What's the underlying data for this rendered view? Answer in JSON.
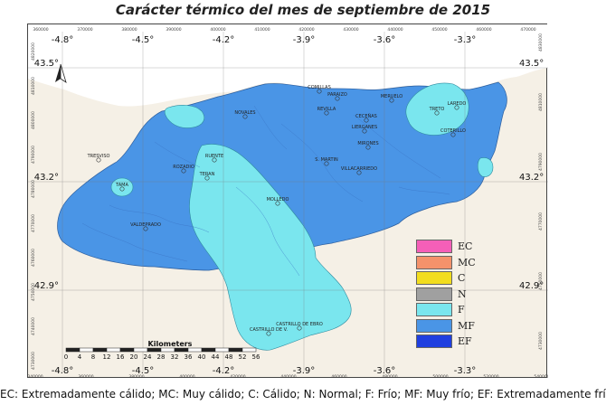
{
  "title": "Carácter térmico del mes de septiembre de 2015",
  "lon_labels_deg": [
    "-4.8°",
    "-4.5°",
    "-4.2°",
    "-3.9°",
    "-3.6°",
    "-3.3°"
  ],
  "lat_labels_deg": [
    "43.5°",
    "43.2°",
    "42.9°"
  ],
  "utm_x_top": [
    "360000",
    "370000",
    "380000",
    "390000",
    "400000",
    "410000",
    "420000",
    "430000",
    "440000",
    "450000",
    "460000",
    "470000"
  ],
  "utm_x_bottom": [
    "340000",
    "360000",
    "380000",
    "400000",
    "420000",
    "440000",
    "460000",
    "480000",
    "500000",
    "520000",
    "540000"
  ],
  "utm_y_left": [
    "4820000",
    "4810000",
    "4800000",
    "4790000",
    "4780000",
    "4770000",
    "4760000",
    "4750000",
    "4740000",
    "4730000"
  ],
  "utm_y_right": [
    "4830000",
    "4810000",
    "4790000",
    "4770000",
    "4750000",
    "4730000"
  ],
  "places": [
    "COMILLAS",
    "PARAIZO",
    "MERUELO",
    "LAREDO",
    "TRETO",
    "NOVALES",
    "REVILLA",
    "CECEÑAS",
    "LIERGANES",
    "COTERILLO",
    "MIRONES",
    "S. MARTIN",
    "VILLACARRIEDO",
    "TRESVISO",
    "TAMA",
    "ROZADIO",
    "TERAN",
    "RUENTE",
    "MOLLEDO",
    "VALDEPRADO",
    "CASTRILLO DE EBRO",
    "CASTRILLO DE V."
  ],
  "scale_bar": {
    "title": "Kilometers",
    "ticks": [
      "0",
      "4",
      "8",
      "12",
      "16",
      "20",
      "24",
      "28",
      "32",
      "36",
      "40",
      "44",
      "48",
      "52",
      "56"
    ]
  },
  "legend": [
    {
      "code": "EC",
      "color": "#f55fb8"
    },
    {
      "code": "MC",
      "color": "#f4926b"
    },
    {
      "code": "C",
      "color": "#f2dd1e"
    },
    {
      "code": "N",
      "color": "#a0a0a0"
    },
    {
      "code": "F",
      "color": "#7ae6ee"
    },
    {
      "code": "MF",
      "color": "#4a95e6"
    },
    {
      "code": "EF",
      "color": "#1f3fe0"
    }
  ],
  "colors": {
    "sea": "#ffffff",
    "land_outside": "#f5f0e6",
    "region_mf": "#4a95e6",
    "region_f": "#7ae6ee",
    "rivers": "#3a73c4"
  },
  "caption": "EC: Extremadamente cálido; MC: Muy cálido; C: Cálido; N: Normal; F: Frío; MF: Muy frío; EF: Extremadamente frío."
}
